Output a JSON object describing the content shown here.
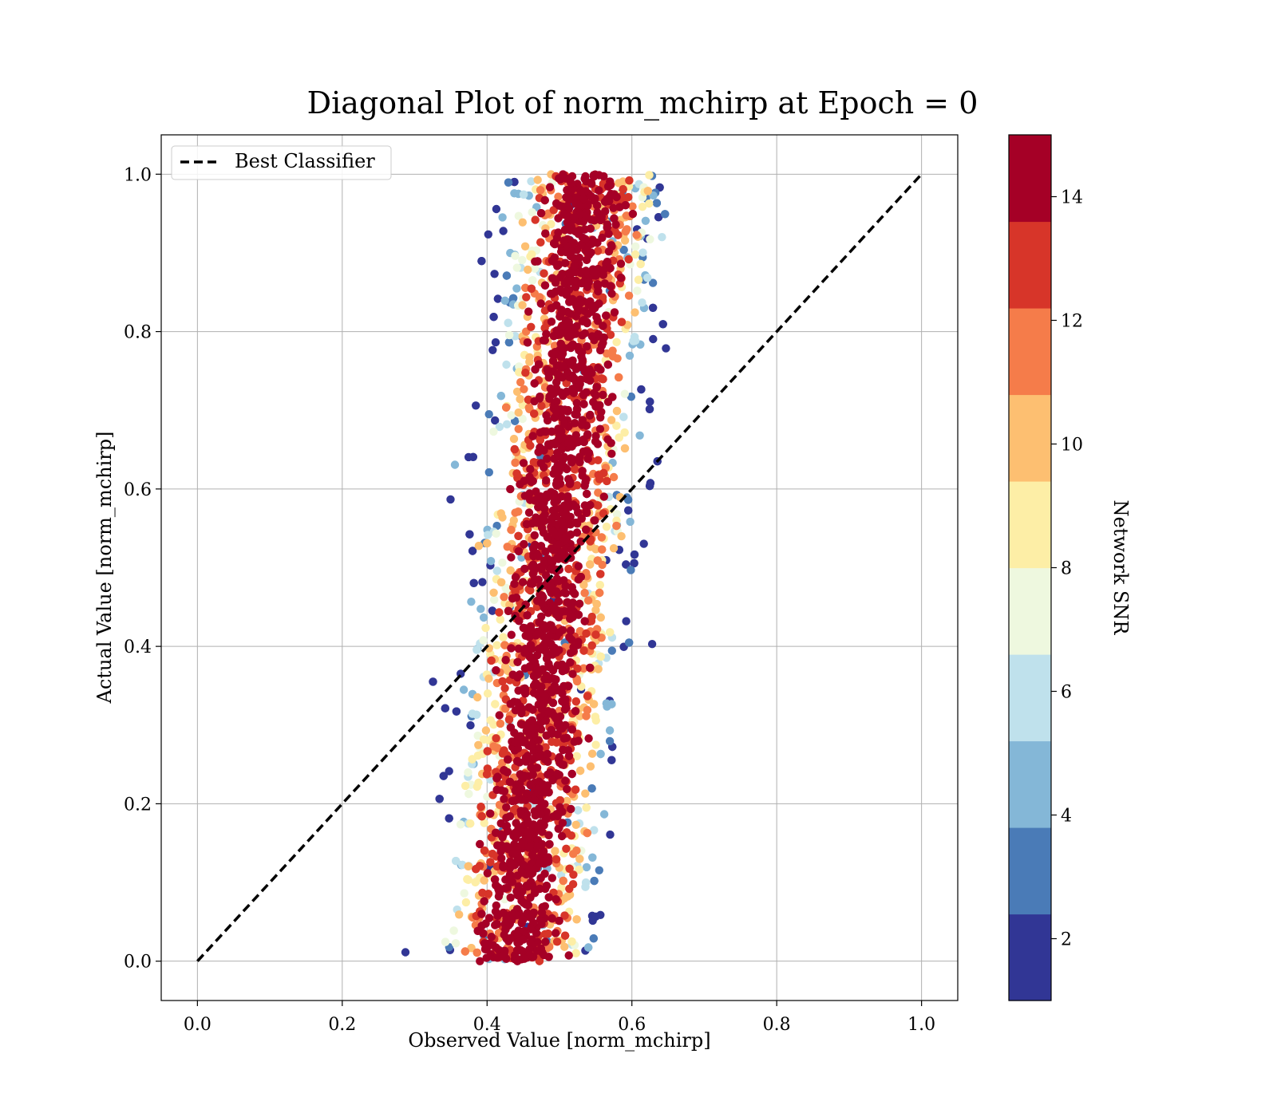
{
  "chart_data": {
    "type": "scatter",
    "title": "Diagonal Plot of norm_mchirp at Epoch = 0",
    "xlabel": "Observed Value [norm_mchirp]",
    "ylabel": "Actual Value [norm_mchirp]",
    "xlim": [
      -0.05,
      1.05
    ],
    "ylim": [
      -0.05,
      1.05
    ],
    "xticks": [
      0.0,
      0.2,
      0.4,
      0.6,
      0.8,
      1.0
    ],
    "yticks": [
      0.0,
      0.2,
      0.4,
      0.6,
      0.8,
      1.0
    ],
    "xtick_labels": [
      "0.0",
      "0.2",
      "0.4",
      "0.6",
      "0.8",
      "1.0"
    ],
    "ytick_labels": [
      "0.0",
      "0.2",
      "0.4",
      "0.6",
      "0.8",
      "1.0"
    ],
    "grid": true,
    "legend": {
      "position": "top-left",
      "entries": [
        "Best Classifier"
      ]
    },
    "reference_line": {
      "name": "Best Classifier",
      "style": "dashed",
      "color": "#000000",
      "x": [
        0.0,
        1.0
      ],
      "y": [
        0.0,
        1.0
      ]
    },
    "point_cloud": {
      "color_variable": "Network SNR",
      "observed_center_at_actual_0": 0.44,
      "observed_center_at_actual_1": 0.54,
      "observed_halfwidth": 0.085,
      "actual_range": [
        0.0,
        1.0
      ],
      "color_trend": "high SNR in the core, low SNR at the edges"
    },
    "colorbar": {
      "label": "Network SNR",
      "range": [
        1,
        15
      ],
      "ticks": [
        2,
        4,
        6,
        8,
        10,
        12,
        14
      ],
      "tick_labels": [
        "2",
        "4",
        "6",
        "8",
        "10",
        "12",
        "14"
      ],
      "levels": [
        {
          "from": 1,
          "to": 2.4,
          "color": "#313695"
        },
        {
          "from": 2.4,
          "to": 3.8,
          "color": "#4a7bb7"
        },
        {
          "from": 3.8,
          "to": 5.2,
          "color": "#84b7d7"
        },
        {
          "from": 5.2,
          "to": 6.6,
          "color": "#bfe1ec"
        },
        {
          "from": 6.6,
          "to": 8.0,
          "color": "#eef8df"
        },
        {
          "from": 8.0,
          "to": 9.4,
          "color": "#fdeea6"
        },
        {
          "from": 9.4,
          "to": 10.8,
          "color": "#fdbf71"
        },
        {
          "from": 10.8,
          "to": 12.2,
          "color": "#f57c4a"
        },
        {
          "from": 12.2,
          "to": 13.6,
          "color": "#d73529"
        },
        {
          "from": 13.6,
          "to": 15,
          "color": "#a50026"
        }
      ]
    }
  }
}
